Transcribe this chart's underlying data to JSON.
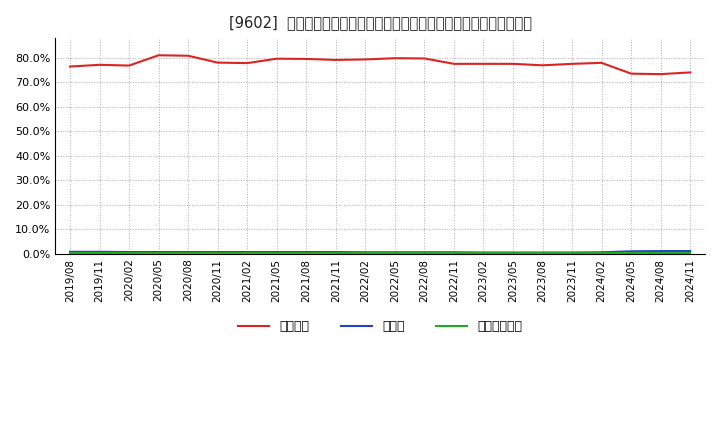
{
  "title": "[9602]  自己資本、のれん、繰延税金資産の総資産に対する比率の推移",
  "background_color": "#ffffff",
  "plot_bg_color": "#ffffff",
  "grid_color": "#aaaaaa",
  "ylim": [
    0.0,
    0.88
  ],
  "yticks": [
    0.0,
    0.1,
    0.2,
    0.3,
    0.4,
    0.5,
    0.6,
    0.7,
    0.8
  ],
  "x_labels": [
    "2019/08",
    "2019/11",
    "2020/02",
    "2020/05",
    "2020/08",
    "2020/11",
    "2021/02",
    "2021/05",
    "2021/08",
    "2021/11",
    "2022/02",
    "2022/05",
    "2022/08",
    "2022/11",
    "2023/02",
    "2023/05",
    "2023/08",
    "2023/11",
    "2024/02",
    "2024/05",
    "2024/08",
    "2024/11"
  ],
  "jikoshihon": [
    0.764,
    0.771,
    0.768,
    0.81,
    0.808,
    0.78,
    0.778,
    0.796,
    0.795,
    0.791,
    0.793,
    0.798,
    0.797,
    0.775,
    0.775,
    0.775,
    0.769,
    0.775,
    0.779,
    0.735,
    0.733,
    0.74
  ],
  "noren": [
    0.008,
    0.008,
    0.007,
    0.007,
    0.007,
    0.007,
    0.007,
    0.007,
    0.007,
    0.007,
    0.006,
    0.006,
    0.006,
    0.006,
    0.005,
    0.005,
    0.005,
    0.005,
    0.006,
    0.01,
    0.011,
    0.011
  ],
  "kurinobe": [
    0.003,
    0.003,
    0.003,
    0.003,
    0.003,
    0.003,
    0.003,
    0.003,
    0.003,
    0.003,
    0.003,
    0.003,
    0.003,
    0.003,
    0.003,
    0.003,
    0.003,
    0.003,
    0.003,
    0.003,
    0.003,
    0.003
  ],
  "jikoshihon_color": "#dd2222",
  "noren_color": "#2244cc",
  "kurinobe_color": "#22aa22",
  "legend_labels": [
    "自己資本",
    "のれん",
    "繰延税金資産"
  ]
}
